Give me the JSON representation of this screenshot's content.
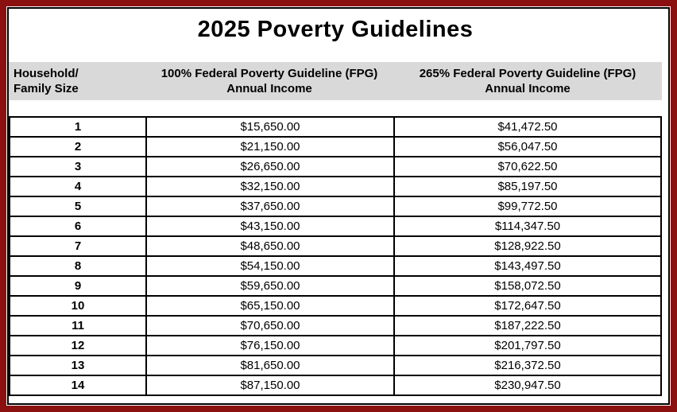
{
  "page": {
    "title": "2025 Poverty Guidelines"
  },
  "colors": {
    "frame_border": "#8B1111",
    "inner_border": "#000000",
    "header_background": "#D9D9D9",
    "grid_lines": "#000000",
    "text": "#000000",
    "page_background": "#FFFFFF"
  },
  "table": {
    "headers": {
      "col1_line1": "Household/",
      "col1_line2": "Family Size",
      "col2_line1": "100% Federal Poverty Guideline (FPG)",
      "col2_line2": "Annual Income",
      "col3_line1": "265% Federal Poverty Guideline (FPG)",
      "col3_line2": "Annual Income"
    },
    "rows": [
      {
        "size": "1",
        "fpg100": "$15,650.00",
        "fpg265": "$41,472.50"
      },
      {
        "size": "2",
        "fpg100": "$21,150.00",
        "fpg265": "$56,047.50"
      },
      {
        "size": "3",
        "fpg100": "$26,650.00",
        "fpg265": "$70,622.50"
      },
      {
        "size": "4",
        "fpg100": "$32,150.00",
        "fpg265": "$85,197.50"
      },
      {
        "size": "5",
        "fpg100": "$37,650.00",
        "fpg265": "$99,772.50"
      },
      {
        "size": "6",
        "fpg100": "$43,150.00",
        "fpg265": "$114,347.50"
      },
      {
        "size": "7",
        "fpg100": "$48,650.00",
        "fpg265": "$128,922.50"
      },
      {
        "size": "8",
        "fpg100": "$54,150.00",
        "fpg265": "$143,497.50"
      },
      {
        "size": "9",
        "fpg100": "$59,650.00",
        "fpg265": "$158,072.50"
      },
      {
        "size": "10",
        "fpg100": "$65,150.00",
        "fpg265": "$172,647.50"
      },
      {
        "size": "11",
        "fpg100": "$70,650.00",
        "fpg265": "$187,222.50"
      },
      {
        "size": "12",
        "fpg100": "$76,150.00",
        "fpg265": "$201,797.50"
      },
      {
        "size": "13",
        "fpg100": "$81,650.00",
        "fpg265": "$216,372.50"
      },
      {
        "size": "14",
        "fpg100": "$87,150.00",
        "fpg265": "$230,947.50"
      }
    ]
  }
}
